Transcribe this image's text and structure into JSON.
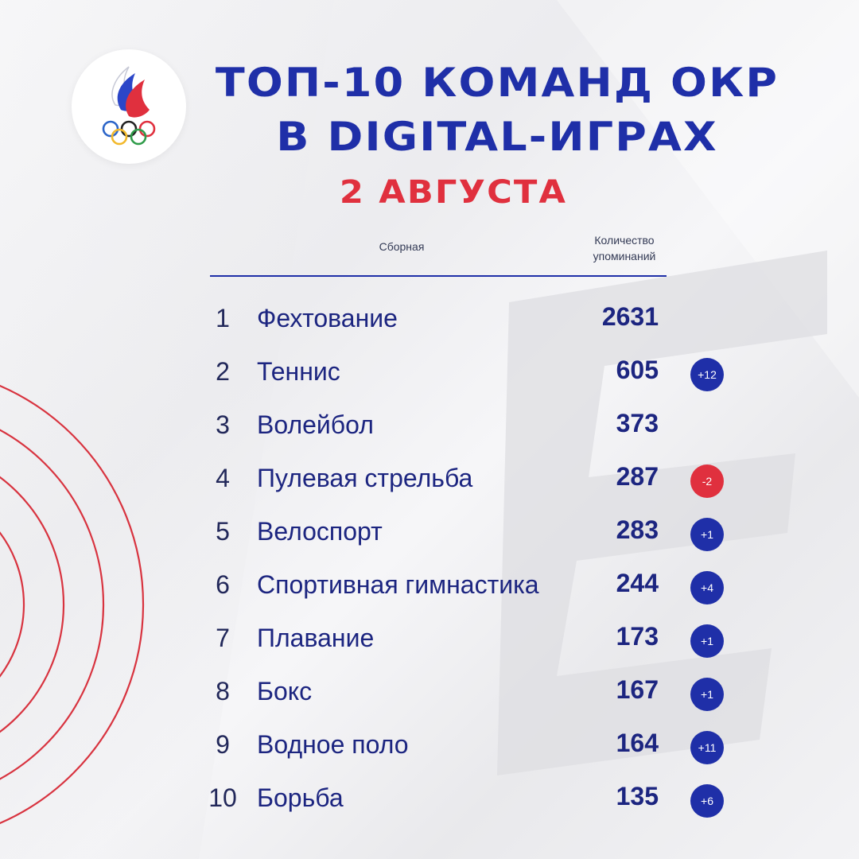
{
  "header": {
    "title_line1": "ТОП-10 КОМАНД ОКР",
    "title_line2": "В DIGITAL-ИГРАХ",
    "date": "2 АВГУСТА"
  },
  "table": {
    "col_team": "Сборная",
    "col_count_line1": "Количество",
    "col_count_line2": "упоминаний",
    "rows": [
      {
        "rank": "1",
        "name": "Фехтование",
        "count": "2631",
        "change": "",
        "trend": "none"
      },
      {
        "rank": "2",
        "name": "Теннис",
        "count": "605",
        "change": "+12",
        "trend": "up"
      },
      {
        "rank": "3",
        "name": "Волейбол",
        "count": "373",
        "change": "",
        "trend": "none"
      },
      {
        "rank": "4",
        "name": "Пулевая стрельба",
        "count": "287",
        "change": "-2",
        "trend": "down"
      },
      {
        "rank": "5",
        "name": "Велоспорт",
        "count": "283",
        "change": "+1",
        "trend": "up"
      },
      {
        "rank": "6",
        "name": "Спортивная гимнастика",
        "count": "244",
        "change": "+4",
        "trend": "up"
      },
      {
        "rank": "7",
        "name": "Плавание",
        "count": "173",
        "change": "+1",
        "trend": "up"
      },
      {
        "rank": "8",
        "name": "Бокс",
        "count": "167",
        "change": "+1",
        "trend": "up"
      },
      {
        "rank": "9",
        "name": "Водное поло",
        "count": "164",
        "change": "+11",
        "trend": "up"
      },
      {
        "rank": "10",
        "name": "Борьба",
        "count": "135",
        "change": "+6",
        "trend": "up"
      }
    ]
  },
  "colors": {
    "primary_blue": "#1f2fa8",
    "accent_red": "#e0303e",
    "background": "#f1f1f3"
  },
  "icons": {
    "logo": "roc-olympic-flame-rings-logo",
    "decor_arcs": "red-concentric-arcs",
    "watermark": "roc-watermark-letters"
  }
}
